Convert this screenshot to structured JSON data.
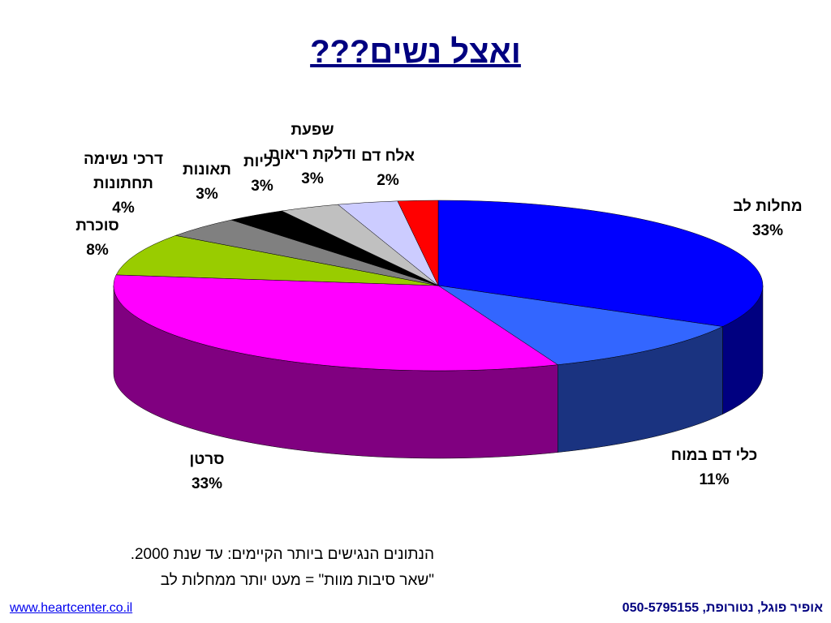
{
  "chart_data": {
    "type": "pie",
    "title": "ואצל נשים???",
    "categories": [
      "מחלות לב",
      "כלי דם במוח",
      "סרטן",
      "סוכרת",
      "דרכי נשימה תחתונות",
      "תאונות",
      "כליות",
      "שפעת ודלקת ריאות",
      "אלח דם"
    ],
    "values": [
      33,
      11,
      33,
      8,
      4,
      3,
      3,
      3,
      2
    ],
    "value_labels": [
      "33%",
      "11%",
      "33%",
      "8%",
      "4%",
      "3%",
      "3%",
      "3%",
      "2%"
    ],
    "colors": [
      "#0000ff",
      "#3366ff",
      "#ff00ff",
      "#99cc00",
      "#808080",
      "#000000",
      "#c0c0c0",
      "#ccccff",
      "#ff0000"
    ]
  },
  "notes": [
    "הנתונים הנגישים ביותר הקיימים: עד שנת 2000.",
    "\"שאר סיבות מוות\" = מעט יותר ממחלות לב"
  ],
  "footer": {
    "link": "www.heartcenter.co.il",
    "credit": "אופיר פוגל, נטורופת, 050-5795155"
  }
}
